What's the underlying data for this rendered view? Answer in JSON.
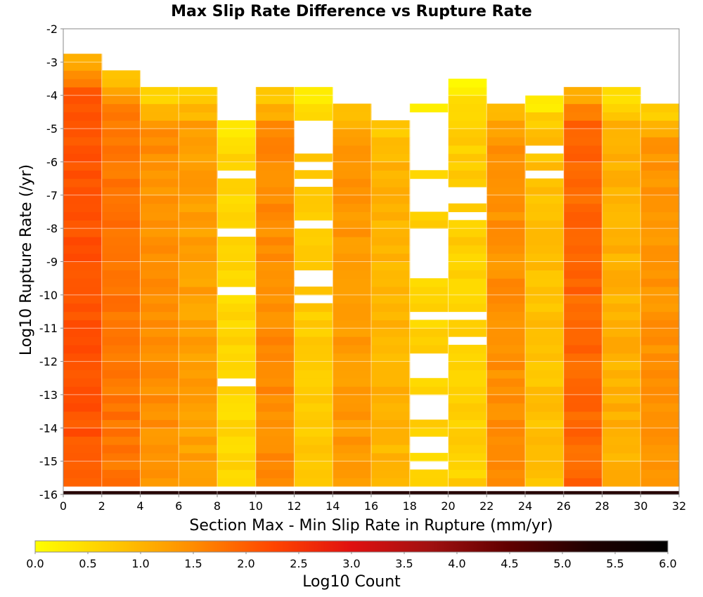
{
  "chart_data": {
    "type": "heatmap",
    "title": "Max Slip Rate Difference vs Rupture Rate",
    "xlabel": "Section Max - Min Slip Rate in Rupture (mm/yr)",
    "ylabel": "Log10 Rupture Rate (/yr)",
    "xlim": [
      0,
      32
    ],
    "ylim": [
      -16,
      -2
    ],
    "x_ticks": [
      0,
      2,
      4,
      6,
      8,
      10,
      12,
      14,
      16,
      18,
      20,
      22,
      24,
      26,
      28,
      30,
      32
    ],
    "y_ticks": [
      -2,
      -3,
      -4,
      -5,
      -6,
      -7,
      -8,
      -9,
      -10,
      -11,
      -12,
      -13,
      -14,
      -15,
      -16
    ],
    "x_bin_width": 2,
    "y_bin_height": 0.25,
    "grid": true,
    "colorbar": {
      "label": "Log10 Count",
      "range": [
        0.0,
        6.0
      ],
      "ticks": [
        "0.0",
        "0.5",
        "1.0",
        "1.5",
        "2.0",
        "2.5",
        "3.0",
        "3.5",
        "4.0",
        "4.5",
        "5.0",
        "5.5",
        "6.0"
      ],
      "gradient": [
        "#ffff00",
        "#ffc800",
        "#ff8c00",
        "#ff4600",
        "#e01010",
        "#a01010",
        "#600000",
        "#200000",
        "#000000"
      ]
    },
    "columns": [
      {
        "x": 1,
        "top": -2.75,
        "base": 2.1,
        "edge": 1.0,
        "gaps": []
      },
      {
        "x": 3,
        "top": -3.25,
        "base": 1.75,
        "edge": 0.8,
        "gaps": []
      },
      {
        "x": 5,
        "top": -3.75,
        "base": 1.45,
        "edge": 0.8,
        "gaps": []
      },
      {
        "x": 7,
        "top": -3.75,
        "base": 1.25,
        "edge": 0.6,
        "gaps": []
      },
      {
        "x": 9,
        "top": -4.25,
        "base": 0.55,
        "edge": 0.4,
        "gaps": [
          -4.5,
          -4.75,
          -6.5,
          -8.25,
          -10.0,
          -12.75
        ]
      },
      {
        "x": 11,
        "top": -3.75,
        "base": 1.5,
        "edge": 0.7,
        "gaps": []
      },
      {
        "x": 13,
        "top": -3.75,
        "base": 0.7,
        "edge": 0.5,
        "gaps": [
          -5.0,
          -5.25,
          -5.5,
          -5.75,
          -6.25,
          -6.75,
          -8.0,
          -9.5,
          -9.75,
          -10.25
        ]
      },
      {
        "x": 15,
        "top": -4.25,
        "base": 1.35,
        "edge": 0.5,
        "gaps": []
      },
      {
        "x": 17,
        "top": -4.75,
        "base": 1.0,
        "edge": 0.3,
        "gaps": []
      },
      {
        "x": 19,
        "top": -4.25,
        "base": 0.6,
        "edge": 0.3,
        "gaps": [
          -4.75,
          -5.0,
          -5.25,
          -5.5,
          -5.75,
          -6.0,
          -6.25,
          -6.75,
          -7.0,
          -7.25,
          -7.5,
          -8.25,
          -8.5,
          -8.75,
          -9.0,
          -9.25,
          -9.5,
          -10.75,
          -12.0,
          -12.25,
          -12.5,
          -13.25,
          -13.5,
          -13.75,
          -14.5,
          -14.75,
          -15.25
        ]
      },
      {
        "x": 21,
        "top": -3.5,
        "base": 0.65,
        "edge": 0.5,
        "gaps": [
          -7.0,
          -7.25,
          -7.75,
          -10.75,
          -11.5
        ]
      },
      {
        "x": 23,
        "top": -4.25,
        "base": 1.45,
        "edge": 0.6,
        "gaps": []
      },
      {
        "x": 25,
        "top": -4.0,
        "base": 0.85,
        "edge": 0.5,
        "gaps": [
          -5.75,
          -6.5
        ]
      },
      {
        "x": 27,
        "top": -3.75,
        "base": 1.9,
        "edge": 0.8,
        "gaps": []
      },
      {
        "x": 29,
        "top": -3.75,
        "base": 1.05,
        "edge": 0.7,
        "gaps": []
      },
      {
        "x": 31,
        "top": -4.25,
        "base": 1.4,
        "edge": 0.7,
        "gaps": []
      }
    ],
    "bottom_row": {
      "y": -15.95,
      "value": 5.2
    }
  }
}
